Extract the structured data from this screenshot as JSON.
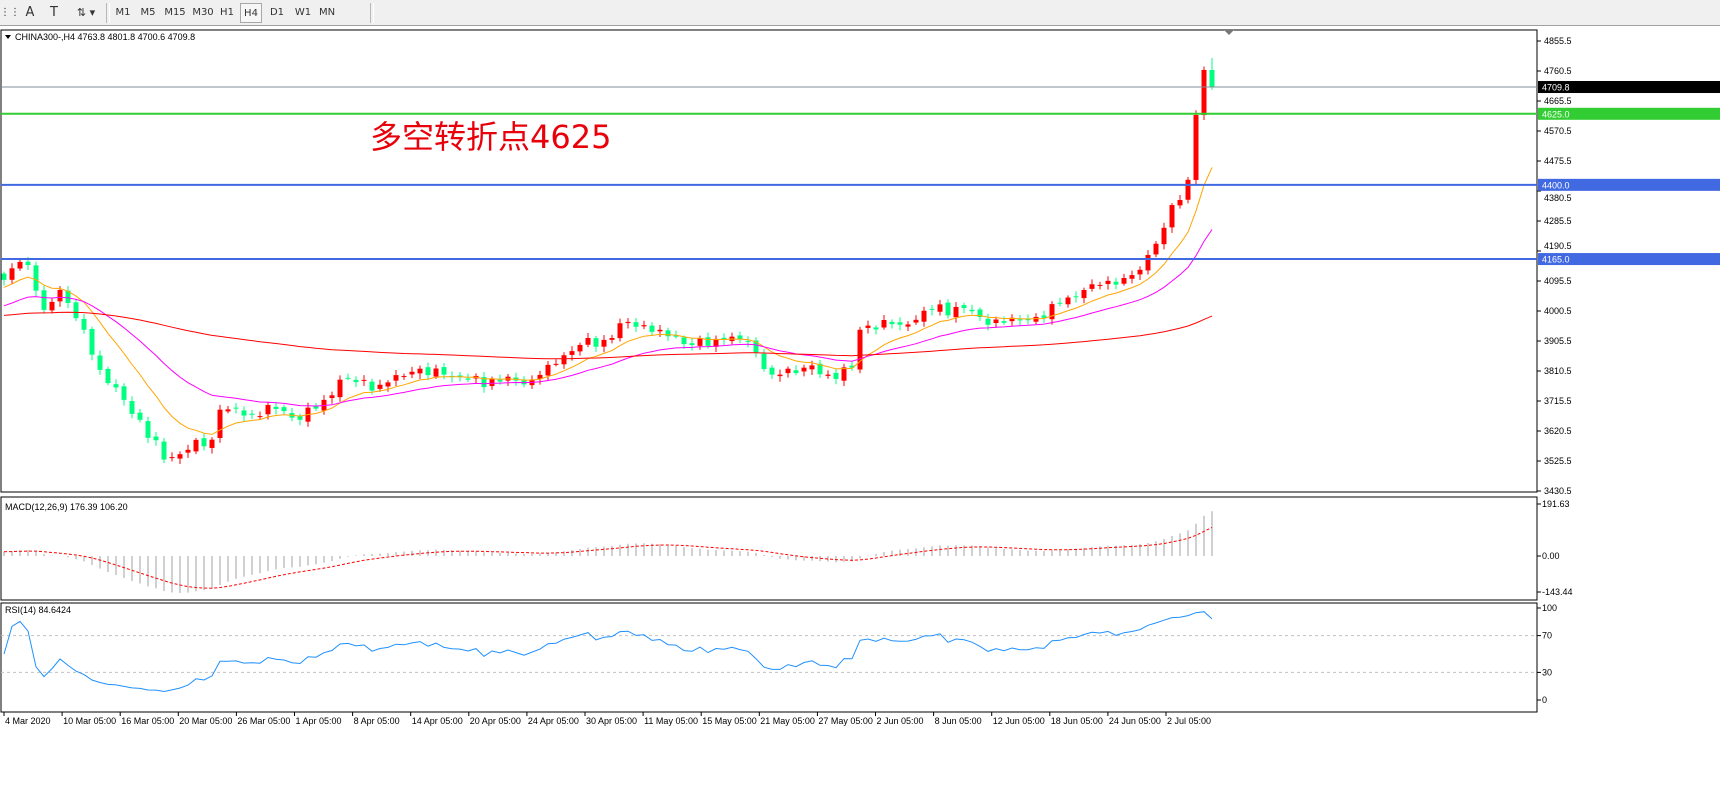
{
  "toolbar": {
    "icons": [
      "grid-f-icon",
      "text-a-icon",
      "text-label-icon",
      "arrows-icon"
    ],
    "timeframes": [
      "M1",
      "M5",
      "M15",
      "M30",
      "H1",
      "H4",
      "D1",
      "W1",
      "MN"
    ],
    "active_timeframe": "H4"
  },
  "chart": {
    "header": "CHINA300-,H4  4763.8 4801.8 4700.6 4709.8",
    "symbol": "CHINA300-",
    "period": "H4",
    "ohlc": {
      "open": 4763.8,
      "high": 4801.8,
      "low": 4700.6,
      "close": 4709.8
    },
    "annotation": "多空转折点4625",
    "colors": {
      "bull": "#ff0000",
      "bear": "#00ff80",
      "ma_fast": "#ffa500",
      "ma_mid": "#ff00ff",
      "ma_slow": "#ff0000",
      "green_line": "#32cd32",
      "blue_line": "#4169e1",
      "rsi": "#1e90ff",
      "macd_hist": "#c0c0c0",
      "macd_signal": "#ff0000"
    },
    "price_axis": [
      "4855.5",
      "4760.5",
      "4665.5",
      "4570.5",
      "4475.5",
      "4380.5",
      "4285.5",
      "4190.5",
      "4095.5",
      "4000.5",
      "3905.5",
      "3810.5",
      "3715.5",
      "3620.5",
      "3525.5",
      "3430.5"
    ],
    "horizontal_lines": [
      {
        "name": "bid",
        "price": 4709.8,
        "label": "4709.8",
        "color": "#7f8c99",
        "tag_color": "#000000"
      },
      {
        "name": "pivot",
        "price": 4625.0,
        "label": "4625.0",
        "color": "#32cd32",
        "tag_color": "#32cd32"
      },
      {
        "name": "resistance-4400",
        "price": 4400.0,
        "label": "4400.0",
        "color": "#4169e1",
        "tag_color": "#4169e1"
      },
      {
        "name": "support-4165",
        "price": 4165.0,
        "label": "4165.0",
        "color": "#4169e1",
        "tag_color": "#4169e1"
      }
    ],
    "time_axis": [
      "4 Mar 2020",
      "10 Mar 05:00",
      "16 Mar 05:00",
      "20 Mar 05:00",
      "26 Mar 05:00",
      "1 Apr 05:00",
      "8 Apr 05:00",
      "14 Apr 05:00",
      "20 Apr 05:00",
      "24 Apr 05:00",
      "30 Apr 05:00",
      "11 May 05:00",
      "15 May 05:00",
      "21 May 05:00",
      "27 May 05:00",
      "2 Jun 05:00",
      "8 Jun 05:00",
      "12 Jun 05:00",
      "18 Jun 05:00",
      "24 Jun 05:00",
      "2 Jul 05:00"
    ]
  },
  "macd": {
    "label": "MACD(12,26,9) 176.39 106.20",
    "axis": [
      "191.63",
      "0.00",
      "-143.44"
    ]
  },
  "rsi": {
    "label": "RSI(14) 84.6424",
    "axis": [
      "100",
      "70",
      "30",
      "0"
    ]
  },
  "chart_data": {
    "type": "candlestick",
    "price_range": [
      3430.5,
      4855.5
    ],
    "close_path": [
      [
        0,
        4099
      ],
      [
        2,
        4156
      ],
      [
        3,
        4146
      ],
      [
        5,
        4004
      ],
      [
        7,
        4067
      ],
      [
        10,
        3941
      ],
      [
        12,
        3814
      ],
      [
        15,
        3719
      ],
      [
        17,
        3656
      ],
      [
        20,
        3530
      ],
      [
        23,
        3561
      ],
      [
        26,
        3593
      ],
      [
        27,
        3688
      ],
      [
        31,
        3672
      ],
      [
        33,
        3703
      ],
      [
        37,
        3656
      ],
      [
        40,
        3719
      ],
      [
        42,
        3783
      ],
      [
        47,
        3767
      ],
      [
        51,
        3808
      ],
      [
        55,
        3799
      ],
      [
        58,
        3783
      ],
      [
        62,
        3777
      ],
      [
        66,
        3783
      ],
      [
        68,
        3830
      ],
      [
        72,
        3893
      ],
      [
        75,
        3909
      ],
      [
        78,
        3966
      ],
      [
        82,
        3941
      ],
      [
        86,
        3893
      ],
      [
        90,
        3909
      ],
      [
        93,
        3903
      ],
      [
        96,
        3799
      ],
      [
        100,
        3821
      ],
      [
        103,
        3799
      ],
      [
        106,
        3821
      ],
      [
        107,
        3941
      ],
      [
        110,
        3972
      ],
      [
        112,
        3957
      ],
      [
        116,
        4004
      ],
      [
        120,
        4010
      ],
      [
        123,
        3957
      ],
      [
        126,
        3979
      ],
      [
        130,
        3979
      ],
      [
        132,
        4026
      ],
      [
        135,
        4067
      ],
      [
        137,
        4083
      ],
      [
        140,
        4105
      ],
      [
        142,
        4131
      ],
      [
        143,
        4178
      ],
      [
        145,
        4264
      ],
      [
        146,
        4336
      ],
      [
        147,
        4352
      ],
      [
        148,
        4416
      ],
      [
        149,
        4621
      ],
      [
        150,
        4763.8
      ],
      [
        151,
        4709.8
      ]
    ]
  }
}
